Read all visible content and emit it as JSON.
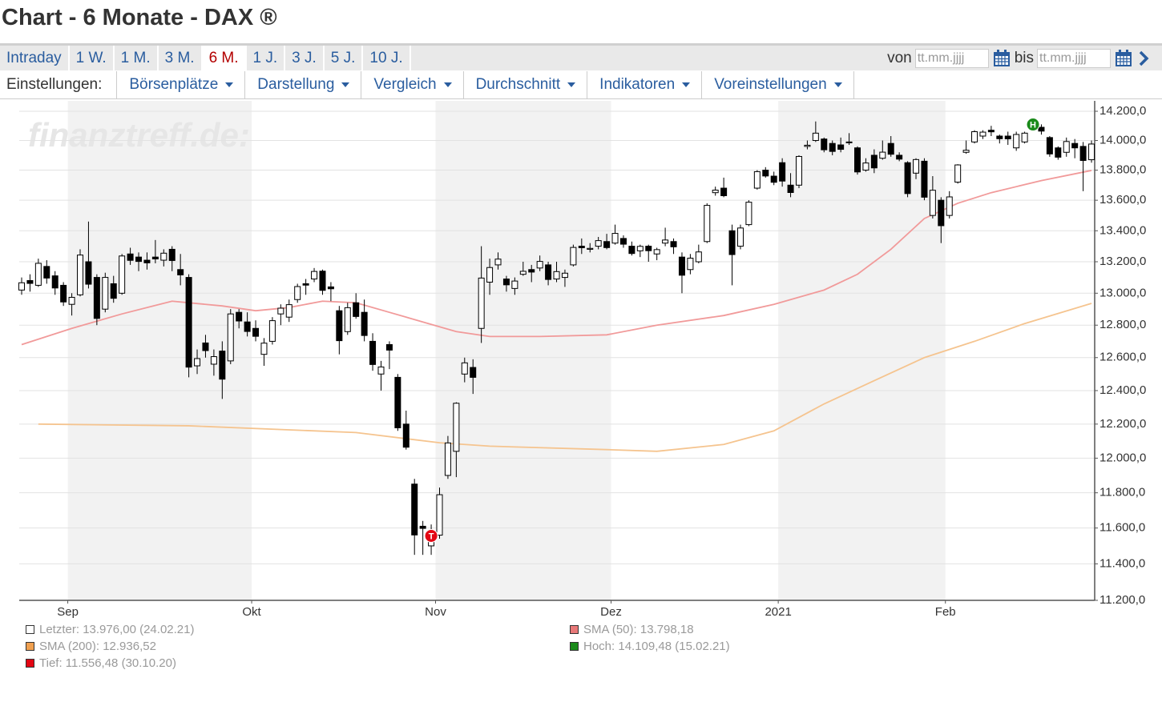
{
  "header": {
    "title": "Chart - 6 Monate - DAX ®"
  },
  "tabs": [
    {
      "label": "Intraday",
      "active": false
    },
    {
      "label": "1 W.",
      "active": false
    },
    {
      "label": "1 M.",
      "active": false
    },
    {
      "label": "3 M.",
      "active": false
    },
    {
      "label": "6 M.",
      "active": true
    },
    {
      "label": "1 J.",
      "active": false
    },
    {
      "label": "3 J.",
      "active": false
    },
    {
      "label": "5 J.",
      "active": false
    },
    {
      "label": "10 J.",
      "active": false
    }
  ],
  "date_range": {
    "from_label": "von",
    "from_placeholder": "tt.mm.jjjj",
    "to_label": "bis",
    "to_placeholder": "tt.mm.jjjj"
  },
  "settings": {
    "label": "Einstellungen:",
    "menus": [
      "Börsenplätze",
      "Darstellung",
      "Vergleich",
      "Durchschnitt",
      "Indikatoren",
      "Voreinstellungen"
    ]
  },
  "watermark": "finanztreff.de:",
  "chart_data": {
    "type": "candlestick",
    "log": true,
    "grid": true,
    "up_color": "#ffffff",
    "down_color": "#000000",
    "categories": [
      null,
      null,
      null,
      null,
      null,
      null,
      "Sep",
      null,
      null,
      null,
      null,
      null,
      null,
      null,
      null,
      null,
      null,
      null,
      null,
      null,
      null,
      null,
      null,
      null,
      null,
      null,
      null,
      null,
      "Okt",
      null,
      null,
      null,
      null,
      null,
      null,
      null,
      null,
      null,
      null,
      null,
      null,
      null,
      null,
      null,
      null,
      null,
      null,
      null,
      null,
      null,
      "Nov",
      null,
      null,
      null,
      null,
      null,
      null,
      null,
      null,
      null,
      null,
      null,
      null,
      null,
      null,
      null,
      null,
      null,
      null,
      null,
      null,
      "Dez",
      null,
      null,
      null,
      null,
      null,
      null,
      null,
      null,
      null,
      null,
      null,
      null,
      null,
      null,
      null,
      null,
      null,
      null,
      null,
      "2021",
      null,
      null,
      null,
      null,
      null,
      null,
      null,
      null,
      null,
      null,
      null,
      null,
      null,
      null,
      null,
      null,
      null,
      null,
      null,
      "Feb",
      null,
      null,
      null,
      null,
      null,
      null,
      null,
      null,
      null,
      null,
      null,
      null,
      null,
      null,
      null,
      null,
      null
    ],
    "open": [
      13020,
      13080,
      13050,
      13170,
      13110,
      13050,
      12930,
      12990,
      13200,
      13100,
      12900,
      13060,
      13000,
      13250,
      13230,
      13210,
      13230,
      13210,
      13280,
      13150,
      13100,
      12550,
      12690,
      12560,
      12640,
      12580,
      12880,
      12820,
      12780,
      12620,
      12700,
      12870,
      12850,
      12960,
      13060,
      13090,
      13140,
      13040,
      12890,
      12760,
      12940,
      12880,
      12700,
      12500,
      12680,
      12480,
      12200,
      11850,
      11610,
      11500,
      11560,
      11900,
      12040,
      12500,
      12540,
      12780,
      13070,
      13180,
      13090,
      13030,
      13120,
      13150,
      13160,
      13180,
      13090,
      13100,
      13180,
      13300,
      13280,
      13300,
      13330,
      13320,
      13350,
      13300,
      13270,
      13300,
      13250,
      13320,
      13330,
      13230,
      13150,
      13200,
      13330,
      13650,
      13680,
      13400,
      13300,
      13440,
      13680,
      13800,
      13760,
      13850,
      13700,
      13700,
      13960,
      14000,
      14010,
      13980,
      13970,
      13990,
      13950,
      13800,
      13900,
      13880,
      13980,
      13900,
      13850,
      13780,
      13860,
      13500,
      13600,
      13500,
      13720,
      13920,
      13990,
      14030,
      14070,
      14030,
      14030,
      13950,
      13990,
      14100,
      14090,
      14020,
      13950,
      13920,
      13980,
      13960,
      13870
    ],
    "high": [
      13100,
      13120,
      13220,
      13210,
      13140,
      13070,
      13000,
      13280,
      13460,
      13120,
      13130,
      13110,
      13250,
      13290,
      13260,
      13260,
      13340,
      13280,
      13300,
      13250,
      13120,
      12650,
      12740,
      12650,
      12700,
      12900,
      12900,
      12880,
      12830,
      12720,
      12850,
      12930,
      12960,
      13060,
      13090,
      13160,
      13150,
      13070,
      12920,
      12940,
      13000,
      12960,
      12750,
      12580,
      12700,
      12500,
      12280,
      11880,
      11640,
      11620,
      11830,
      12130,
      12330,
      12600,
      12590,
      13300,
      13220,
      13260,
      13110,
      13100,
      13200,
      13180,
      13240,
      13200,
      13200,
      13150,
      13310,
      13350,
      13320,
      13360,
      13380,
      13440,
      13370,
      13330,
      13310,
      13310,
      13290,
      13420,
      13350,
      13260,
      13250,
      13310,
      13580,
      13690,
      13750,
      13440,
      13440,
      13600,
      13800,
      13820,
      13790,
      13880,
      13780,
      13900,
      14000,
      14130,
      14020,
      14000,
      14020,
      14050,
      13960,
      13880,
      13940,
      14000,
      14030,
      13920,
      13860,
      13880,
      13880,
      13760,
      13620,
      13660,
      13840,
      14000,
      14070,
      14070,
      14100,
      14040,
      14060,
      14060,
      14060,
      14130,
      14110,
      14030,
      13960,
      14020,
      14010,
      13990,
      14000
    ],
    "low": [
      12990,
      13010,
      13040,
      13060,
      12990,
      12920,
      12860,
      12980,
      13030,
      12800,
      12880,
      12940,
      12990,
      13180,
      13140,
      13150,
      13190,
      13170,
      13140,
      13050,
      12480,
      12500,
      12600,
      12490,
      12350,
      12560,
      12780,
      12730,
      12700,
      12550,
      12680,
      12800,
      12820,
      12940,
      12990,
      13070,
      12990,
      12950,
      12620,
      12740,
      12840,
      12700,
      12520,
      12400,
      12530,
      12160,
      12050,
      11450,
      11450,
      11450,
      11540,
      11880,
      11890,
      12450,
      12380,
      12690,
      12990,
      13150,
      13010,
      12990,
      13110,
      13070,
      13140,
      13050,
      13070,
      13040,
      13170,
      13250,
      13260,
      13280,
      13280,
      13310,
      13290,
      13240,
      13230,
      13200,
      13210,
      13300,
      13250,
      13000,
      13120,
      13190,
      13320,
      13630,
      13620,
      13050,
      13280,
      13430,
      13670,
      13750,
      13700,
      13690,
      13620,
      13680,
      13940,
      13990,
      13920,
      13900,
      13920,
      13970,
      13770,
      13790,
      13780,
      13870,
      13890,
      13860,
      13620,
      13740,
      13600,
      13480,
      13320,
      13480,
      13710,
      13910,
      13980,
      14010,
      14030,
      13980,
      13970,
      13930,
      13980,
      14080,
      14040,
      13890,
      13870,
      13890,
      13880,
      13660,
      13850
    ],
    "close": [
      13066,
      13062,
      13190,
      13096,
      13033,
      12945,
      12974,
      13243,
      13057,
      12842,
      13100,
      12968,
      13237,
      13209,
      13202,
      13193,
      13218,
      13255,
      13208,
      13116,
      12542,
      12594,
      12643,
      12606,
      12469,
      12870,
      12826,
      12761,
      12731,
      12689,
      12828,
      12906,
      12928,
      13042,
      13051,
      13138,
      13018,
      13028,
      12704,
      12909,
      12854,
      12736,
      12558,
      12543,
      12646,
      12178,
      12064,
      11561,
      11598,
      11556,
      11789,
      12089,
      12324,
      12568,
      12480,
      13096,
      13163,
      13217,
      13053,
      13077,
      13139,
      13134,
      13202,
      13087,
      13137,
      13127,
      13292,
      13290,
      13286,
      13336,
      13291,
      13383,
      13313,
      13253,
      13299,
      13271,
      13278,
      13340,
      13296,
      13114,
      13223,
      13263,
      13566,
      13667,
      13630,
      13246,
      13418,
      13587,
      13790,
      13761,
      13719,
      13727,
      13651,
      13892,
      13968,
      14050,
      13937,
      13926,
      13940,
      13989,
      13788,
      13848,
      13815,
      13921,
      13907,
      13874,
      13644,
      13871,
      13620,
      13666,
      13433,
      13622,
      13835,
      13934,
      14060,
      14057,
      14059,
      14012,
      14011,
      14041,
      14050,
      14109,
      14064,
      13909,
      13887,
      13993,
      13950,
      13865,
      13976
    ],
    "series": [
      {
        "name": "SMA (50)",
        "color": "#f19a9a",
        "x": [
          0,
          6,
          12,
          18,
          24,
          28,
          32,
          36,
          40,
          44,
          48,
          52,
          56,
          62,
          70,
          76,
          84,
          90,
          96,
          100,
          104,
          108,
          112,
          116,
          122,
          128
        ],
        "values": [
          12680,
          12780,
          12870,
          12950,
          12920,
          12890,
          12910,
          12950,
          12940,
          12880,
          12820,
          12760,
          12730,
          12730,
          12740,
          12800,
          12860,
          12930,
          13020,
          13120,
          13280,
          13480,
          13580,
          13650,
          13730,
          13798
        ]
      },
      {
        "name": "SMA (200)",
        "color": "#f5c48f",
        "x": [
          2,
          20,
          40,
          50,
          56,
          70,
          76,
          84,
          90,
          96,
          102,
          108,
          114,
          120,
          128
        ],
        "values": [
          12200,
          12190,
          12150,
          12090,
          12070,
          12050,
          12040,
          12080,
          12160,
          12320,
          12460,
          12600,
          12700,
          12810,
          12936
        ]
      }
    ],
    "markers": [
      {
        "label": "T",
        "x": 49,
        "y": 11556,
        "color": "#e30613"
      },
      {
        "label": "H",
        "x": 121,
        "y": 14109,
        "color": "#1a8a1a"
      }
    ],
    "ylim": [
      11200,
      14200
    ],
    "yticks": [
      {
        "value": 14200,
        "label": "14.200,0"
      },
      {
        "value": 14000,
        "label": "14.000,0"
      },
      {
        "value": 13800,
        "label": "13.800,0"
      },
      {
        "value": 13600,
        "label": "13.600,0"
      },
      {
        "value": 13400,
        "label": "13.400,0"
      },
      {
        "value": 13200,
        "label": "13.200,0"
      },
      {
        "value": 13000,
        "label": "13.000,0"
      },
      {
        "value": 12800,
        "label": "12.800,0"
      },
      {
        "value": 12600,
        "label": "12.600,0"
      },
      {
        "value": 12400,
        "label": "12.400,0"
      },
      {
        "value": 12200,
        "label": "12.200,0"
      },
      {
        "value": 12000,
        "label": "12.000,0"
      },
      {
        "value": 11800,
        "label": "11.800,0"
      },
      {
        "value": 11600,
        "label": "11.600,0"
      },
      {
        "value": 11400,
        "label": "11.400,0"
      },
      {
        "value": 11200,
        "label": "11.200,0"
      }
    ],
    "legend": [
      {
        "label": "Letzter: 13.976,00 (24.02.21)",
        "color": "#ffffff"
      },
      {
        "label": "SMA (200): 12.936,52",
        "color": "#f0a050"
      },
      {
        "label": "Tief: 11.556,48 (30.10.20)",
        "color": "#e30613"
      },
      {
        "label": "SMA (50): 13.798,18",
        "color": "#e87878"
      },
      {
        "label": "Hoch: 14.109,48 (15.02.21)",
        "color": "#1a8a1a"
      }
    ]
  }
}
